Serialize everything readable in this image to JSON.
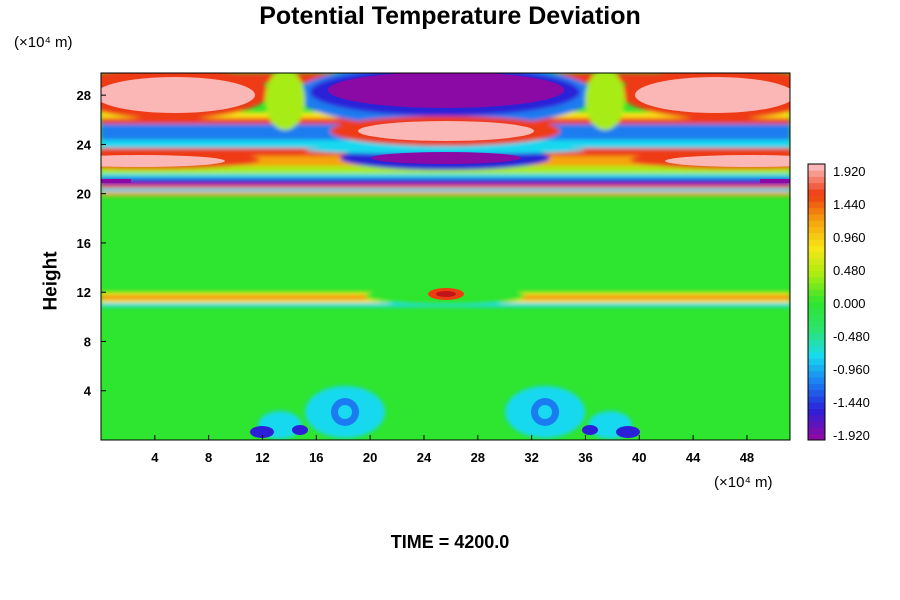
{
  "chart_data": {
    "type": "heatmap",
    "title": "Potential Temperature Deviation",
    "xlabel": "",
    "ylabel": "Height",
    "x_unit_label": "(×10⁴ m)",
    "y_unit_label": "(×10⁴ m)",
    "x_ticks": [
      4,
      8,
      12,
      16,
      20,
      24,
      28,
      32,
      36,
      40,
      44,
      48
    ],
    "y_ticks": [
      4,
      8,
      12,
      16,
      20,
      24,
      28
    ],
    "xlim": [
      0,
      51.2
    ],
    "ylim": [
      0,
      29.8
    ],
    "colorbar": {
      "ticks": [
        "1.920",
        "1.440",
        "0.960",
        "0.480",
        "0.000",
        "-0.480",
        "-0.960",
        "-1.440",
        "-1.920"
      ],
      "range": [
        -1.92,
        1.92
      ],
      "colors": [
        "#8b0aa5",
        "#2b20d8",
        "#1a7cf0",
        "#19d9f0",
        "#2de36c",
        "#2ee52f",
        "#a8ec12",
        "#f7e616",
        "#f5a40e",
        "#ee3b12",
        "#fbb6b6"
      ]
    },
    "annotation": "TIME = 4200.0"
  }
}
